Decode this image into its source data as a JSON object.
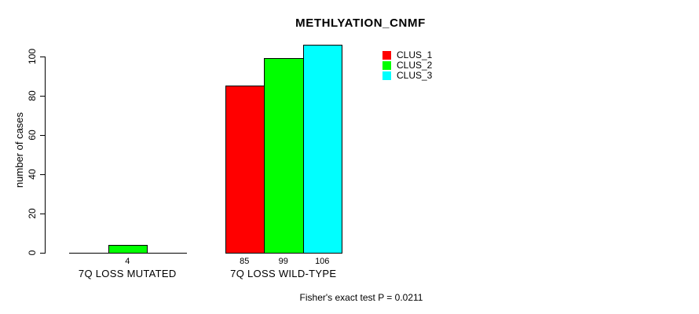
{
  "title": "METHLYATION_CNMF",
  "y_axis": {
    "label": "number of cases",
    "tick_labels": [
      "0",
      "20",
      "40",
      "60",
      "80",
      "100"
    ]
  },
  "legend": {
    "items": [
      {
        "label": "CLUS_1",
        "color": "#FF0000"
      },
      {
        "label": "CLUS_2",
        "color": "#00FF00"
      },
      {
        "label": "CLUS_3",
        "color": "#00FFFF"
      }
    ]
  },
  "footnote": "Fisher's exact test P = 0.0211",
  "chart_data": {
    "type": "bar",
    "title": "METHLYATION_CNMF",
    "ylabel": "number of cases",
    "xlabel": "",
    "categories": [
      "7Q LOSS MUTATED",
      "7Q LOSS WILD-TYPE"
    ],
    "series": [
      {
        "name": "CLUS_1",
        "color": "#FF0000",
        "values": [
          0,
          85
        ]
      },
      {
        "name": "CLUS_2",
        "color": "#00FF00",
        "values": [
          4,
          99
        ]
      },
      {
        "name": "CLUS_3",
        "color": "#00FFFF",
        "values": [
          0,
          106
        ]
      }
    ],
    "value_labels": [
      [
        "",
        "4",
        ""
      ],
      [
        "85",
        "99",
        "106"
      ]
    ],
    "yticks": [
      0,
      20,
      40,
      60,
      80,
      100
    ],
    "ylim": [
      0,
      107
    ],
    "grid": false,
    "legend_position": "upper-right",
    "bar_border_color": "#000000",
    "annotation": "Fisher's exact test P = 0.0211"
  }
}
